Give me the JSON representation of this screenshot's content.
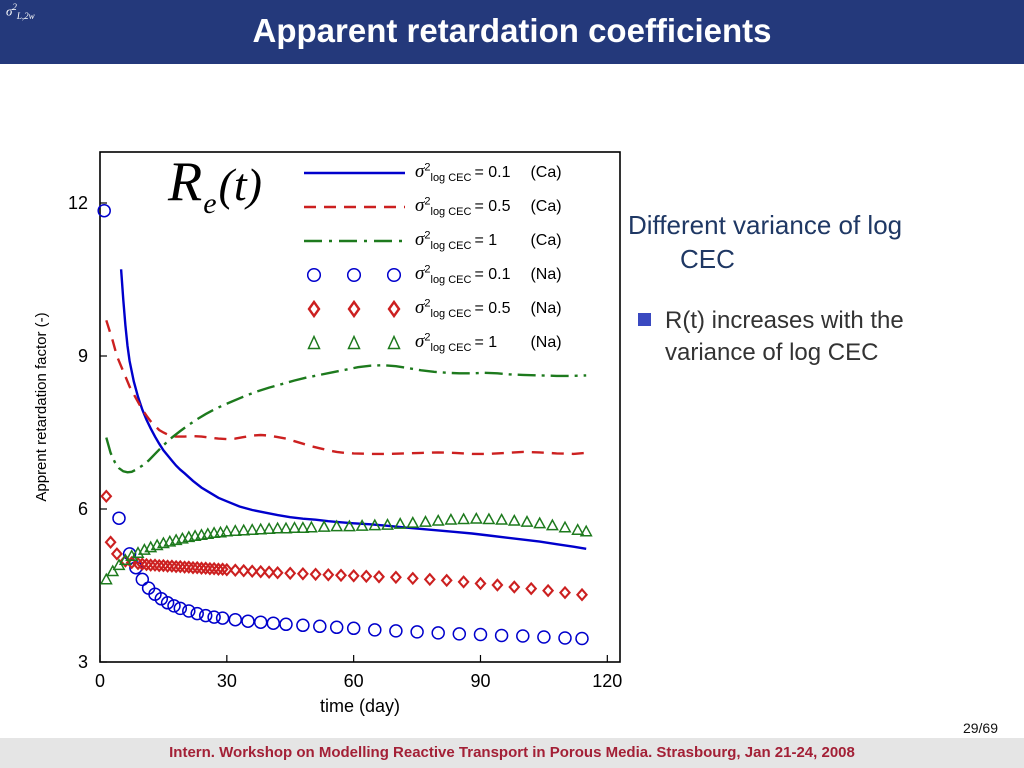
{
  "slide": {
    "title": "Apparent retardation coefficients",
    "corner_formula": {
      "sigma": "σ",
      "sup": "2",
      "sub": "L,2w"
    },
    "page_number": "29/69",
    "footer": "Intern. Workshop on Modelling Reactive Transport in Porous Media. Strasbourg, Jan 21-24, 2008"
  },
  "content": {
    "heading": "Different variance of log CEC",
    "bullet": "R(t) increases with the variance of log CEC"
  },
  "colors": {
    "header_bg": "#24397b",
    "heading_text": "#1f3864",
    "footer_text": "#a32036",
    "bullet_square": "#3a49c0",
    "series_blue": "#0000cc",
    "series_red": "#cc2020",
    "series_green": "#1d7a1d"
  },
  "chart_data": {
    "type": "line",
    "plot_label": {
      "R": "R",
      "sub": "e",
      "rest": "(t)"
    },
    "xlabel": "time (day)",
    "ylabel": "Apprent retardation factor (-)",
    "xlim": [
      0,
      123
    ],
    "ylim": [
      3,
      13
    ],
    "xticks": [
      0,
      30,
      60,
      90,
      120
    ],
    "yticks": [
      3,
      6,
      9,
      12
    ],
    "grid": false,
    "legend_position": "inside-top-right",
    "legend": [
      {
        "sigma": "σ",
        "sup": "2",
        "sub": "log CEC",
        "eq": "= 0.1",
        "ion": "(Ca)"
      },
      {
        "sigma": "σ",
        "sup": "2",
        "sub": "log CEC",
        "eq": "= 0.5",
        "ion": "(Ca)"
      },
      {
        "sigma": "σ",
        "sup": "2",
        "sub": "log CEC",
        "eq": "= 1",
        "ion": "(Ca)"
      },
      {
        "sigma": "σ",
        "sup": "2",
        "sub": "log CEC",
        "eq": "= 0.1",
        "ion": "(Na)"
      },
      {
        "sigma": "σ",
        "sup": "2",
        "sub": "log CEC",
        "eq": "= 0.5",
        "ion": "(Na)"
      },
      {
        "sigma": "σ",
        "sup": "2",
        "sub": "log CEC",
        "eq": "= 1",
        "ion": "(Na)"
      }
    ],
    "series": [
      {
        "id": "ca-var0.1",
        "name": "sigma2 log CEC = 0.1 (Ca)",
        "style": "line",
        "dash": "solid",
        "color": "#0000cc",
        "points": [
          [
            5,
            10.7
          ],
          [
            5.5,
            10.1
          ],
          [
            6,
            9.6
          ],
          [
            6.5,
            9.2
          ],
          [
            7,
            8.9
          ],
          [
            8,
            8.5
          ],
          [
            9,
            8.2
          ],
          [
            10,
            7.95
          ],
          [
            11,
            7.75
          ],
          [
            12,
            7.58
          ],
          [
            13,
            7.42
          ],
          [
            14,
            7.28
          ],
          [
            15,
            7.15
          ],
          [
            16,
            7.05
          ],
          [
            17,
            6.95
          ],
          [
            18,
            6.85
          ],
          [
            19,
            6.77
          ],
          [
            20,
            6.7
          ],
          [
            22,
            6.55
          ],
          [
            24,
            6.42
          ],
          [
            26,
            6.32
          ],
          [
            28,
            6.22
          ],
          [
            30,
            6.15
          ],
          [
            33,
            6.05
          ],
          [
            36,
            5.98
          ],
          [
            39,
            5.93
          ],
          [
            42,
            5.88
          ],
          [
            45,
            5.84
          ],
          [
            48,
            5.81
          ],
          [
            51,
            5.79
          ],
          [
            54,
            5.76
          ],
          [
            57,
            5.74
          ],
          [
            60,
            5.72
          ],
          [
            64,
            5.7
          ],
          [
            68,
            5.67
          ],
          [
            72,
            5.64
          ],
          [
            76,
            5.61
          ],
          [
            80,
            5.58
          ],
          [
            84,
            5.55
          ],
          [
            88,
            5.52
          ],
          [
            92,
            5.48
          ],
          [
            96,
            5.44
          ],
          [
            100,
            5.4
          ],
          [
            104,
            5.36
          ],
          [
            108,
            5.31
          ],
          [
            112,
            5.26
          ],
          [
            115,
            5.22
          ]
        ]
      },
      {
        "id": "ca-var0.5",
        "name": "sigma2 log CEC = 0.5 (Ca)",
        "style": "line",
        "dash": "dashed",
        "color": "#cc2020",
        "points": [
          [
            1.5,
            9.7
          ],
          [
            3,
            9.3
          ],
          [
            4,
            9.0
          ],
          [
            5,
            8.8
          ],
          [
            6,
            8.6
          ],
          [
            7,
            8.4
          ],
          [
            8,
            8.25
          ],
          [
            9,
            8.1
          ],
          [
            10,
            7.95
          ],
          [
            11,
            7.83
          ],
          [
            12,
            7.72
          ],
          [
            13,
            7.63
          ],
          [
            14,
            7.55
          ],
          [
            15,
            7.5
          ],
          [
            16,
            7.46
          ],
          [
            17,
            7.43
          ],
          [
            18,
            7.42
          ],
          [
            20,
            7.42
          ],
          [
            22,
            7.43
          ],
          [
            24,
            7.42
          ],
          [
            26,
            7.4
          ],
          [
            28,
            7.38
          ],
          [
            30,
            7.37
          ],
          [
            32,
            7.38
          ],
          [
            34,
            7.41
          ],
          [
            36,
            7.44
          ],
          [
            38,
            7.45
          ],
          [
            40,
            7.44
          ],
          [
            42,
            7.41
          ],
          [
            44,
            7.38
          ],
          [
            46,
            7.33
          ],
          [
            48,
            7.28
          ],
          [
            50,
            7.23
          ],
          [
            52,
            7.19
          ],
          [
            54,
            7.15
          ],
          [
            56,
            7.12
          ],
          [
            58,
            7.1
          ],
          [
            60,
            7.09
          ],
          [
            64,
            7.08
          ],
          [
            68,
            7.08
          ],
          [
            72,
            7.09
          ],
          [
            76,
            7.1
          ],
          [
            80,
            7.11
          ],
          [
            84,
            7.1
          ],
          [
            88,
            7.08
          ],
          [
            92,
            7.08
          ],
          [
            96,
            7.1
          ],
          [
            100,
            7.12
          ],
          [
            104,
            7.11
          ],
          [
            108,
            7.09
          ],
          [
            112,
            7.08
          ],
          [
            115,
            7.1
          ]
        ]
      },
      {
        "id": "ca-var1",
        "name": "sigma2 log CEC = 1 (Ca)",
        "style": "line",
        "dash": "dashdot",
        "color": "#1d7a1d",
        "points": [
          [
            1.5,
            7.4
          ],
          [
            2.5,
            7.1
          ],
          [
            3.5,
            6.92
          ],
          [
            4.5,
            6.8
          ],
          [
            5.5,
            6.74
          ],
          [
            6.5,
            6.72
          ],
          [
            7.5,
            6.73
          ],
          [
            8.5,
            6.77
          ],
          [
            10,
            6.85
          ],
          [
            11.5,
            6.95
          ],
          [
            13,
            7.08
          ],
          [
            15,
            7.25
          ],
          [
            17,
            7.4
          ],
          [
            19,
            7.53
          ],
          [
            21,
            7.65
          ],
          [
            23,
            7.76
          ],
          [
            25,
            7.86
          ],
          [
            27,
            7.95
          ],
          [
            29,
            8.03
          ],
          [
            31,
            8.1
          ],
          [
            33,
            8.17
          ],
          [
            35,
            8.24
          ],
          [
            37,
            8.3
          ],
          [
            40,
            8.38
          ],
          [
            43,
            8.45
          ],
          [
            46,
            8.52
          ],
          [
            49,
            8.58
          ],
          [
            52,
            8.63
          ],
          [
            55,
            8.68
          ],
          [
            58,
            8.73
          ],
          [
            61,
            8.78
          ],
          [
            64,
            8.81
          ],
          [
            67,
            8.82
          ],
          [
            70,
            8.8
          ],
          [
            73,
            8.76
          ],
          [
            76,
            8.72
          ],
          [
            79,
            8.69
          ],
          [
            82,
            8.67
          ],
          [
            85,
            8.66
          ],
          [
            88,
            8.66
          ],
          [
            91,
            8.67
          ],
          [
            94,
            8.66
          ],
          [
            97,
            8.64
          ],
          [
            100,
            8.63
          ],
          [
            104,
            8.62
          ],
          [
            108,
            8.61
          ],
          [
            112,
            8.61
          ],
          [
            115,
            8.62
          ]
        ]
      },
      {
        "id": "na-var0.1",
        "name": "sigma2 log CEC = 0.1 (Na)",
        "style": "scatter",
        "marker": "circle",
        "color": "#0000cc",
        "points": [
          [
            1,
            11.85
          ],
          [
            4.5,
            5.82
          ],
          [
            7,
            5.12
          ],
          [
            8.5,
            4.85
          ],
          [
            10,
            4.62
          ],
          [
            11.5,
            4.45
          ],
          [
            13,
            4.33
          ],
          [
            14.5,
            4.24
          ],
          [
            16,
            4.16
          ],
          [
            17.5,
            4.1
          ],
          [
            19,
            4.05
          ],
          [
            21,
            4.0
          ],
          [
            23,
            3.95
          ],
          [
            25,
            3.91
          ],
          [
            27,
            3.88
          ],
          [
            29,
            3.86
          ],
          [
            32,
            3.83
          ],
          [
            35,
            3.8
          ],
          [
            38,
            3.78
          ],
          [
            41,
            3.76
          ],
          [
            44,
            3.74
          ],
          [
            48,
            3.72
          ],
          [
            52,
            3.7
          ],
          [
            56,
            3.68
          ],
          [
            60,
            3.66
          ],
          [
            65,
            3.63
          ],
          [
            70,
            3.61
          ],
          [
            75,
            3.59
          ],
          [
            80,
            3.57
          ],
          [
            85,
            3.55
          ],
          [
            90,
            3.54
          ],
          [
            95,
            3.52
          ],
          [
            100,
            3.51
          ],
          [
            105,
            3.49
          ],
          [
            110,
            3.47
          ],
          [
            114,
            3.46
          ]
        ]
      },
      {
        "id": "na-var0.5",
        "name": "sigma2 log CEC = 0.5 (Na)",
        "style": "scatter",
        "marker": "diamond",
        "color": "#cc2020",
        "points": [
          [
            1.5,
            6.25
          ],
          [
            2.5,
            5.35
          ],
          [
            4,
            5.12
          ],
          [
            6,
            4.98
          ],
          [
            7.5,
            4.95
          ],
          [
            9,
            4.93
          ],
          [
            10,
            4.92
          ],
          [
            11,
            4.91
          ],
          [
            12,
            4.9
          ],
          [
            13,
            4.9
          ],
          [
            14,
            4.89
          ],
          [
            15,
            4.89
          ],
          [
            16,
            4.88
          ],
          [
            17,
            4.88
          ],
          [
            18,
            4.87
          ],
          [
            19,
            4.87
          ],
          [
            20,
            4.86
          ],
          [
            21,
            4.86
          ],
          [
            22,
            4.85
          ],
          [
            23,
            4.85
          ],
          [
            24,
            4.84
          ],
          [
            25,
            4.84
          ],
          [
            26,
            4.83
          ],
          [
            27,
            4.83
          ],
          [
            28,
            4.82
          ],
          [
            29,
            4.82
          ],
          [
            30,
            4.81
          ],
          [
            32,
            4.8
          ],
          [
            34,
            4.79
          ],
          [
            36,
            4.78
          ],
          [
            38,
            4.77
          ],
          [
            40,
            4.76
          ],
          [
            42,
            4.75
          ],
          [
            45,
            4.74
          ],
          [
            48,
            4.73
          ],
          [
            51,
            4.72
          ],
          [
            54,
            4.71
          ],
          [
            57,
            4.7
          ],
          [
            60,
            4.69
          ],
          [
            63,
            4.68
          ],
          [
            66,
            4.67
          ],
          [
            70,
            4.66
          ],
          [
            74,
            4.64
          ],
          [
            78,
            4.62
          ],
          [
            82,
            4.6
          ],
          [
            86,
            4.57
          ],
          [
            90,
            4.54
          ],
          [
            94,
            4.51
          ],
          [
            98,
            4.47
          ],
          [
            102,
            4.44
          ],
          [
            106,
            4.4
          ],
          [
            110,
            4.36
          ],
          [
            114,
            4.32
          ]
        ]
      },
      {
        "id": "na-var1",
        "name": "sigma2 log CEC = 1 (Na)",
        "style": "scatter",
        "marker": "triangle",
        "color": "#1d7a1d",
        "points": [
          [
            1.5,
            4.62
          ],
          [
            3,
            4.78
          ],
          [
            4.5,
            4.9
          ],
          [
            6,
            5.0
          ],
          [
            7.5,
            5.08
          ],
          [
            9,
            5.14
          ],
          [
            10.5,
            5.2
          ],
          [
            12,
            5.25
          ],
          [
            13.5,
            5.29
          ],
          [
            15,
            5.33
          ],
          [
            16.5,
            5.36
          ],
          [
            18,
            5.39
          ],
          [
            19.5,
            5.42
          ],
          [
            21,
            5.45
          ],
          [
            22.5,
            5.47
          ],
          [
            24,
            5.49
          ],
          [
            25.5,
            5.51
          ],
          [
            27,
            5.53
          ],
          [
            28.5,
            5.54
          ],
          [
            30,
            5.56
          ],
          [
            32,
            5.57
          ],
          [
            34,
            5.58
          ],
          [
            36,
            5.59
          ],
          [
            38,
            5.6
          ],
          [
            40,
            5.61
          ],
          [
            42,
            5.62
          ],
          [
            44,
            5.62
          ],
          [
            46,
            5.63
          ],
          [
            48,
            5.63
          ],
          [
            50,
            5.64
          ],
          [
            53,
            5.65
          ],
          [
            56,
            5.66
          ],
          [
            59,
            5.66
          ],
          [
            62,
            5.67
          ],
          [
            65,
            5.68
          ],
          [
            68,
            5.69
          ],
          [
            71,
            5.71
          ],
          [
            74,
            5.73
          ],
          [
            77,
            5.75
          ],
          [
            80,
            5.77
          ],
          [
            83,
            5.79
          ],
          [
            86,
            5.8
          ],
          [
            89,
            5.81
          ],
          [
            92,
            5.8
          ],
          [
            95,
            5.79
          ],
          [
            98,
            5.77
          ],
          [
            101,
            5.75
          ],
          [
            104,
            5.72
          ],
          [
            107,
            5.68
          ],
          [
            110,
            5.64
          ],
          [
            113,
            5.59
          ],
          [
            115,
            5.56
          ]
        ]
      }
    ]
  }
}
